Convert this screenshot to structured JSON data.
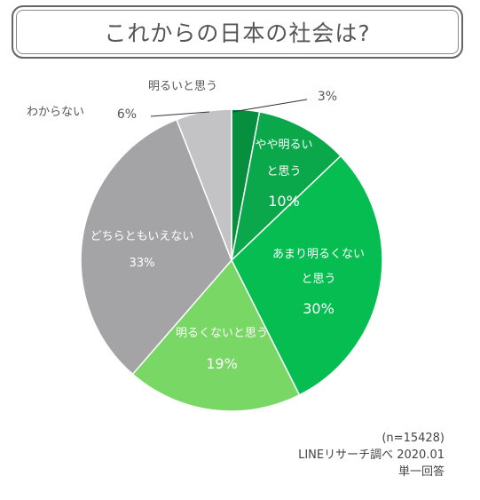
{
  "title": "これからの日本の社会は?",
  "chart_data": {
    "type": "pie",
    "slices": [
      {
        "label_lines": [
          "明るいと思う"
        ],
        "value": 3,
        "value_label": "3%",
        "color": "#078f3f",
        "label_outside": true
      },
      {
        "label_lines": [
          "やや明るい",
          "と思う"
        ],
        "value": 10,
        "value_label": "10%",
        "color": "#0aa84a",
        "label_outside": false
      },
      {
        "label_lines": [
          "あまり明るくない",
          "と思う"
        ],
        "value": 30,
        "value_label": "30%",
        "color": "#06bd52",
        "label_outside": false
      },
      {
        "label_lines": [
          "明るくないと思う"
        ],
        "value": 19,
        "value_label": "19%",
        "color": "#78d765",
        "label_outside": false
      },
      {
        "label_lines": [
          "どちらともいえない"
        ],
        "value": 33,
        "value_label": "33%",
        "color": "#a4a3a6",
        "label_outside": false
      },
      {
        "label_lines": [
          "わからない"
        ],
        "value": 6,
        "value_label": "6%",
        "color": "#c3c2c5",
        "label_outside": true
      }
    ]
  },
  "footer": {
    "sample": "(n=15428)",
    "source": "LINEリサーチ調べ 2020.01",
    "note": "単一回答"
  }
}
